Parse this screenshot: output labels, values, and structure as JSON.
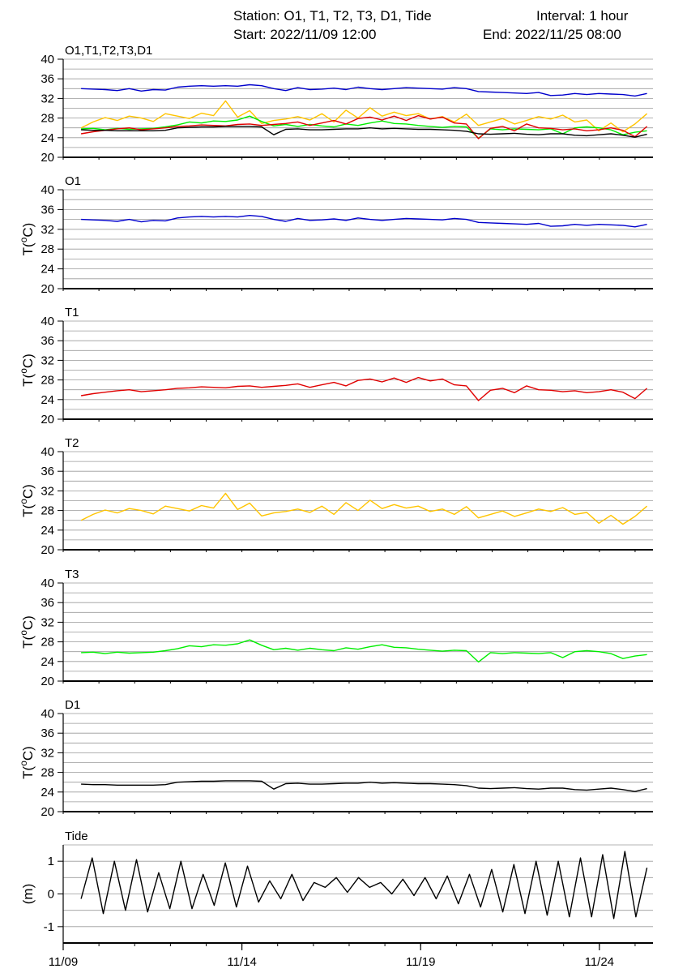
{
  "header": {
    "station": "Station: O1, T1, T2, T3, D1, Tide",
    "interval": "Interval: 1 hour",
    "start": "Start: 2022/11/09 12:00",
    "end": "End: 2022/11/25 08:00"
  },
  "colors": {
    "O1": "#0000cc",
    "T1": "#e00000",
    "T2": "#ffc400",
    "T3": "#00ee00",
    "D1": "#000000",
    "Tide": "#000000",
    "grid": "#9a9a9a"
  },
  "chart_data": [
    {
      "type": "line",
      "title": "O1,T1,T2,T3,D1",
      "ylabel": "",
      "ylim": [
        20,
        40
      ],
      "yticks": [
        20,
        24,
        28,
        32,
        36,
        40
      ],
      "xlim": [
        "2022/11/09 12:00",
        "2022/11/25 08:00"
      ],
      "grid": true,
      "series": [
        {
          "name": "O1",
          "values": [
            34.0,
            33.9,
            33.8,
            33.6,
            34.0,
            33.5,
            33.8,
            33.7,
            34.3,
            34.5,
            34.6,
            34.5,
            34.6,
            34.5,
            34.8,
            34.6,
            34.0,
            33.6,
            34.2,
            33.8,
            33.9,
            34.1,
            33.8,
            34.3,
            34.0,
            33.8,
            34.0,
            34.2,
            34.1,
            34.0,
            33.9,
            34.2,
            34.0,
            33.4,
            33.3,
            33.2,
            33.1,
            33.0,
            33.2,
            32.6,
            32.7,
            33.0,
            32.8,
            33.0,
            32.9,
            32.8,
            32.5,
            33.0
          ]
        },
        {
          "name": "T2",
          "values": [
            26.0,
            27.2,
            28.1,
            27.5,
            28.4,
            28.0,
            27.3,
            28.9,
            28.4,
            27.9,
            29.0,
            28.5,
            31.5,
            28.2,
            29.5,
            26.9,
            27.5,
            27.8,
            28.3,
            27.6,
            28.9,
            27.2,
            29.6,
            28.0,
            30.1,
            28.4,
            29.2,
            28.5,
            28.9,
            27.8,
            28.3,
            27.2,
            28.8,
            26.5,
            27.2,
            27.9,
            26.8,
            27.5,
            28.3,
            27.8,
            28.6,
            27.2,
            27.6,
            25.4,
            27.0,
            25.2,
            26.8,
            28.9
          ]
        },
        {
          "name": "T3",
          "values": [
            25.8,
            25.9,
            25.6,
            25.9,
            25.7,
            25.8,
            25.9,
            26.2,
            26.6,
            27.2,
            27.0,
            27.4,
            27.3,
            27.6,
            28.4,
            27.3,
            26.4,
            26.7,
            26.3,
            26.7,
            26.4,
            26.2,
            26.8,
            26.5,
            27.0,
            27.4,
            26.9,
            26.8,
            26.5,
            26.3,
            26.1,
            26.3,
            26.2,
            23.9,
            25.8,
            25.6,
            25.8,
            25.7,
            25.6,
            25.8,
            24.8,
            26.0,
            26.2,
            26.0,
            25.6,
            24.6,
            25.1,
            25.4
          ]
        },
        {
          "name": "T1",
          "values": [
            24.8,
            25.2,
            25.5,
            25.8,
            26.0,
            25.6,
            25.8,
            26.0,
            26.3,
            26.4,
            26.6,
            26.5,
            26.4,
            26.7,
            26.8,
            26.5,
            26.7,
            26.9,
            27.2,
            26.5,
            27.0,
            27.5,
            26.8,
            27.9,
            28.2,
            27.6,
            28.4,
            27.5,
            28.5,
            27.8,
            28.2,
            27.0,
            26.8,
            23.8,
            25.9,
            26.3,
            25.4,
            26.8,
            26.0,
            25.9,
            25.6,
            25.8,
            25.4,
            25.6,
            26.0,
            25.5,
            24.2,
            26.3
          ]
        },
        {
          "name": "D1",
          "values": [
            25.6,
            25.5,
            25.5,
            25.4,
            25.4,
            25.4,
            25.4,
            25.5,
            26.0,
            26.1,
            26.2,
            26.2,
            26.3,
            26.3,
            26.3,
            26.2,
            24.6,
            25.7,
            25.8,
            25.6,
            25.6,
            25.7,
            25.8,
            25.8,
            26.0,
            25.8,
            25.9,
            25.8,
            25.7,
            25.7,
            25.6,
            25.5,
            25.3,
            24.8,
            24.7,
            24.8,
            24.9,
            24.7,
            24.6,
            24.8,
            24.8,
            24.5,
            24.4,
            24.6,
            24.8,
            24.5,
            24.1,
            24.7
          ]
        }
      ]
    },
    {
      "type": "line",
      "title": "O1",
      "ylabel": "T(oC)",
      "ylim": [
        20,
        40
      ],
      "yticks": [
        20,
        24,
        28,
        32,
        36,
        40
      ],
      "grid": true,
      "series": [
        {
          "name": "O1",
          "values": [
            34.0,
            33.9,
            33.8,
            33.6,
            34.0,
            33.5,
            33.8,
            33.7,
            34.3,
            34.5,
            34.6,
            34.5,
            34.6,
            34.5,
            34.8,
            34.6,
            34.0,
            33.6,
            34.2,
            33.8,
            33.9,
            34.1,
            33.8,
            34.3,
            34.0,
            33.8,
            34.0,
            34.2,
            34.1,
            34.0,
            33.9,
            34.2,
            34.0,
            33.4,
            33.3,
            33.2,
            33.1,
            33.0,
            33.2,
            32.6,
            32.7,
            33.0,
            32.8,
            33.0,
            32.9,
            32.8,
            32.5,
            33.0
          ]
        }
      ]
    },
    {
      "type": "line",
      "title": "T1",
      "ylabel": "T(oC)",
      "ylim": [
        20,
        40
      ],
      "yticks": [
        20,
        24,
        28,
        32,
        36,
        40
      ],
      "grid": true,
      "series": [
        {
          "name": "T1",
          "values": [
            24.8,
            25.2,
            25.5,
            25.8,
            26.0,
            25.6,
            25.8,
            26.0,
            26.3,
            26.4,
            26.6,
            26.5,
            26.4,
            26.7,
            26.8,
            26.5,
            26.7,
            26.9,
            27.2,
            26.5,
            27.0,
            27.5,
            26.8,
            27.9,
            28.2,
            27.6,
            28.4,
            27.5,
            28.5,
            27.8,
            28.2,
            27.0,
            26.8,
            23.8,
            25.9,
            26.3,
            25.4,
            26.8,
            26.0,
            25.9,
            25.6,
            25.8,
            25.4,
            25.6,
            26.0,
            25.5,
            24.2,
            26.3
          ]
        }
      ]
    },
    {
      "type": "line",
      "title": "T2",
      "ylabel": "T(oC)",
      "ylim": [
        20,
        40
      ],
      "yticks": [
        20,
        24,
        28,
        32,
        36,
        40
      ],
      "grid": true,
      "series": [
        {
          "name": "T2",
          "values": [
            26.0,
            27.2,
            28.1,
            27.5,
            28.4,
            28.0,
            27.3,
            28.9,
            28.4,
            27.9,
            29.0,
            28.5,
            31.5,
            28.2,
            29.5,
            26.9,
            27.5,
            27.8,
            28.3,
            27.6,
            28.9,
            27.2,
            29.6,
            28.0,
            30.1,
            28.4,
            29.2,
            28.5,
            28.9,
            27.8,
            28.3,
            27.2,
            28.8,
            26.5,
            27.2,
            27.9,
            26.8,
            27.5,
            28.3,
            27.8,
            28.6,
            27.2,
            27.6,
            25.4,
            27.0,
            25.2,
            26.8,
            28.9
          ]
        }
      ]
    },
    {
      "type": "line",
      "title": "T3",
      "ylabel": "T(oC)",
      "ylim": [
        20,
        40
      ],
      "yticks": [
        20,
        24,
        28,
        32,
        36,
        40
      ],
      "grid": true,
      "series": [
        {
          "name": "T3",
          "values": [
            25.8,
            25.9,
            25.6,
            25.9,
            25.7,
            25.8,
            25.9,
            26.2,
            26.6,
            27.2,
            27.0,
            27.4,
            27.3,
            27.6,
            28.4,
            27.3,
            26.4,
            26.7,
            26.3,
            26.7,
            26.4,
            26.2,
            26.8,
            26.5,
            27.0,
            27.4,
            26.9,
            26.8,
            26.5,
            26.3,
            26.1,
            26.3,
            26.2,
            23.9,
            25.8,
            25.6,
            25.8,
            25.7,
            25.6,
            25.8,
            24.8,
            26.0,
            26.2,
            26.0,
            25.6,
            24.6,
            25.1,
            25.4
          ]
        }
      ]
    },
    {
      "type": "line",
      "title": "D1",
      "ylabel": "T(oC)",
      "ylim": [
        20,
        40
      ],
      "yticks": [
        20,
        24,
        28,
        32,
        36,
        40
      ],
      "grid": true,
      "series": [
        {
          "name": "D1",
          "values": [
            25.6,
            25.5,
            25.5,
            25.4,
            25.4,
            25.4,
            25.4,
            25.5,
            26.0,
            26.1,
            26.2,
            26.2,
            26.3,
            26.3,
            26.3,
            26.2,
            24.6,
            25.7,
            25.8,
            25.6,
            25.6,
            25.7,
            25.8,
            25.8,
            26.0,
            25.8,
            25.9,
            25.8,
            25.7,
            25.7,
            25.6,
            25.5,
            25.3,
            24.8,
            24.7,
            24.8,
            24.9,
            24.7,
            24.6,
            24.8,
            24.8,
            24.5,
            24.4,
            24.6,
            24.8,
            24.5,
            24.1,
            24.7
          ]
        }
      ]
    },
    {
      "type": "line",
      "title": "Tide",
      "ylabel": "(m)",
      "ylim": [
        -1.5,
        1.5
      ],
      "yticks": [
        -1,
        0,
        1
      ],
      "grid": true,
      "xticks": [
        "11/09",
        "11/14",
        "11/19",
        "11/24"
      ],
      "series": [
        {
          "name": "Tide",
          "values": [
            -0.15,
            1.1,
            -0.6,
            1.0,
            -0.5,
            1.05,
            -0.55,
            0.65,
            -0.45,
            1.0,
            -0.45,
            0.6,
            -0.35,
            0.95,
            -0.4,
            0.85,
            -0.25,
            0.4,
            -0.15,
            0.6,
            -0.2,
            0.35,
            0.2,
            0.5,
            0.05,
            0.5,
            0.2,
            0.35,
            0.0,
            0.45,
            -0.05,
            0.5,
            -0.15,
            0.55,
            -0.3,
            0.6,
            -0.4,
            0.75,
            -0.55,
            0.9,
            -0.6,
            1.0,
            -0.65,
            1.0,
            -0.7,
            1.1,
            -0.7,
            1.2,
            -0.75,
            1.3,
            -0.7,
            0.8
          ]
        }
      ]
    }
  ]
}
